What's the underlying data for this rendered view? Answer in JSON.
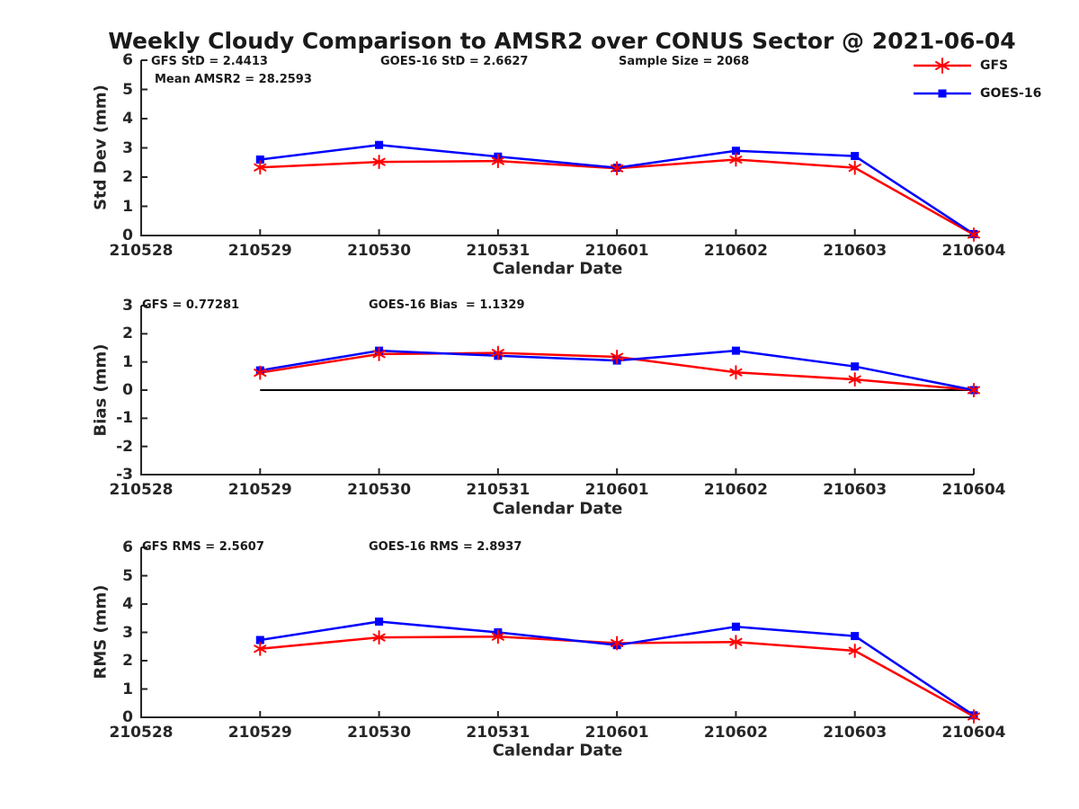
{
  "title": "Weekly Cloudy Comparison to AMSR2 over CONUS Sector @ 2021-06-04",
  "colors": {
    "gfs": "#ff0000",
    "goes16": "#0000ff",
    "axis": "#262626",
    "reference": "#000000"
  },
  "legend": {
    "items": [
      {
        "label": "GFS",
        "marker": "asterisk",
        "color": "#ff0000"
      },
      {
        "label": "GOES-16",
        "marker": "square",
        "color": "#0000ff"
      }
    ]
  },
  "chart_data": [
    {
      "type": "line",
      "ylabel": "Std Dev (mm)",
      "xlabel": "Calendar Date",
      "ylim": [
        0,
        6
      ],
      "yticks": [
        0,
        1,
        2,
        3,
        4,
        5,
        6
      ],
      "xticklabels": [
        "210528",
        "210529",
        "210530",
        "210531",
        "210601",
        "210602",
        "210603",
        "210604"
      ],
      "grid": false,
      "legend_position": "top-right-outside",
      "annotations": [
        {
          "text": "GFS StD = 2.4413"
        },
        {
          "text": "GOES-16 StD = 2.6627"
        },
        {
          "text": "Sample Size = 2068"
        },
        {
          "text": "Mean AMSR2 = 28.2593"
        }
      ],
      "series": [
        {
          "name": "GFS",
          "color": "#ff0000",
          "marker": "asterisk",
          "x": [
            "210529",
            "210530",
            "210531",
            "210601",
            "210602",
            "210603",
            "210604"
          ],
          "values": [
            2.33,
            2.52,
            2.55,
            2.3,
            2.6,
            2.32,
            0.03
          ]
        },
        {
          "name": "GOES-16",
          "color": "#0000ff",
          "marker": "square",
          "x": [
            "210529",
            "210530",
            "210531",
            "210601",
            "210602",
            "210603",
            "210604"
          ],
          "values": [
            2.6,
            3.1,
            2.7,
            2.32,
            2.9,
            2.72,
            0.05
          ]
        }
      ]
    },
    {
      "type": "line",
      "ylabel": "Bias (mm)",
      "xlabel": "Calendar Date",
      "ylim": [
        -3,
        3
      ],
      "yticks": [
        -3,
        -2,
        -1,
        0,
        1,
        2,
        3
      ],
      "xticklabels": [
        "210528",
        "210529",
        "210530",
        "210531",
        "210601",
        "210602",
        "210603",
        "210604"
      ],
      "grid": false,
      "ref_line": {
        "y": 0,
        "x_start": "210529",
        "x_end": "210604",
        "color": "#000000"
      },
      "annotations": [
        {
          "text": "GFS = 0.77281"
        },
        {
          "text": "GOES-16 Bias  = 1.1329"
        }
      ],
      "series": [
        {
          "name": "GFS",
          "color": "#ff0000",
          "marker": "asterisk",
          "x": [
            "210529",
            "210530",
            "210531",
            "210601",
            "210602",
            "210603",
            "210604"
          ],
          "values": [
            0.62,
            1.28,
            1.32,
            1.18,
            0.63,
            0.38,
            0.0
          ]
        },
        {
          "name": "GOES-16",
          "color": "#0000ff",
          "marker": "square",
          "x": [
            "210529",
            "210530",
            "210531",
            "210601",
            "210602",
            "210603",
            "210604"
          ],
          "values": [
            0.7,
            1.4,
            1.22,
            1.05,
            1.4,
            0.84,
            0.0
          ]
        }
      ]
    },
    {
      "type": "line",
      "ylabel": "RMS (mm)",
      "xlabel": "Calendar Date",
      "ylim": [
        0,
        6
      ],
      "yticks": [
        0,
        1,
        2,
        3,
        4,
        5,
        6
      ],
      "xticklabels": [
        "210528",
        "210529",
        "210530",
        "210531",
        "210601",
        "210602",
        "210603",
        "210604"
      ],
      "grid": false,
      "annotations": [
        {
          "text": "GFS RMS = 2.5607"
        },
        {
          "text": "GOES-16 RMS = 2.8937"
        }
      ],
      "series": [
        {
          "name": "GFS",
          "color": "#ff0000",
          "marker": "asterisk",
          "x": [
            "210529",
            "210530",
            "210531",
            "210601",
            "210602",
            "210603",
            "210604"
          ],
          "values": [
            2.42,
            2.82,
            2.85,
            2.62,
            2.66,
            2.35,
            0.03
          ]
        },
        {
          "name": "GOES-16",
          "color": "#0000ff",
          "marker": "square",
          "x": [
            "210529",
            "210530",
            "210531",
            "210601",
            "210602",
            "210603",
            "210604"
          ],
          "values": [
            2.73,
            3.38,
            3.0,
            2.55,
            3.2,
            2.87,
            0.07
          ]
        }
      ]
    }
  ]
}
